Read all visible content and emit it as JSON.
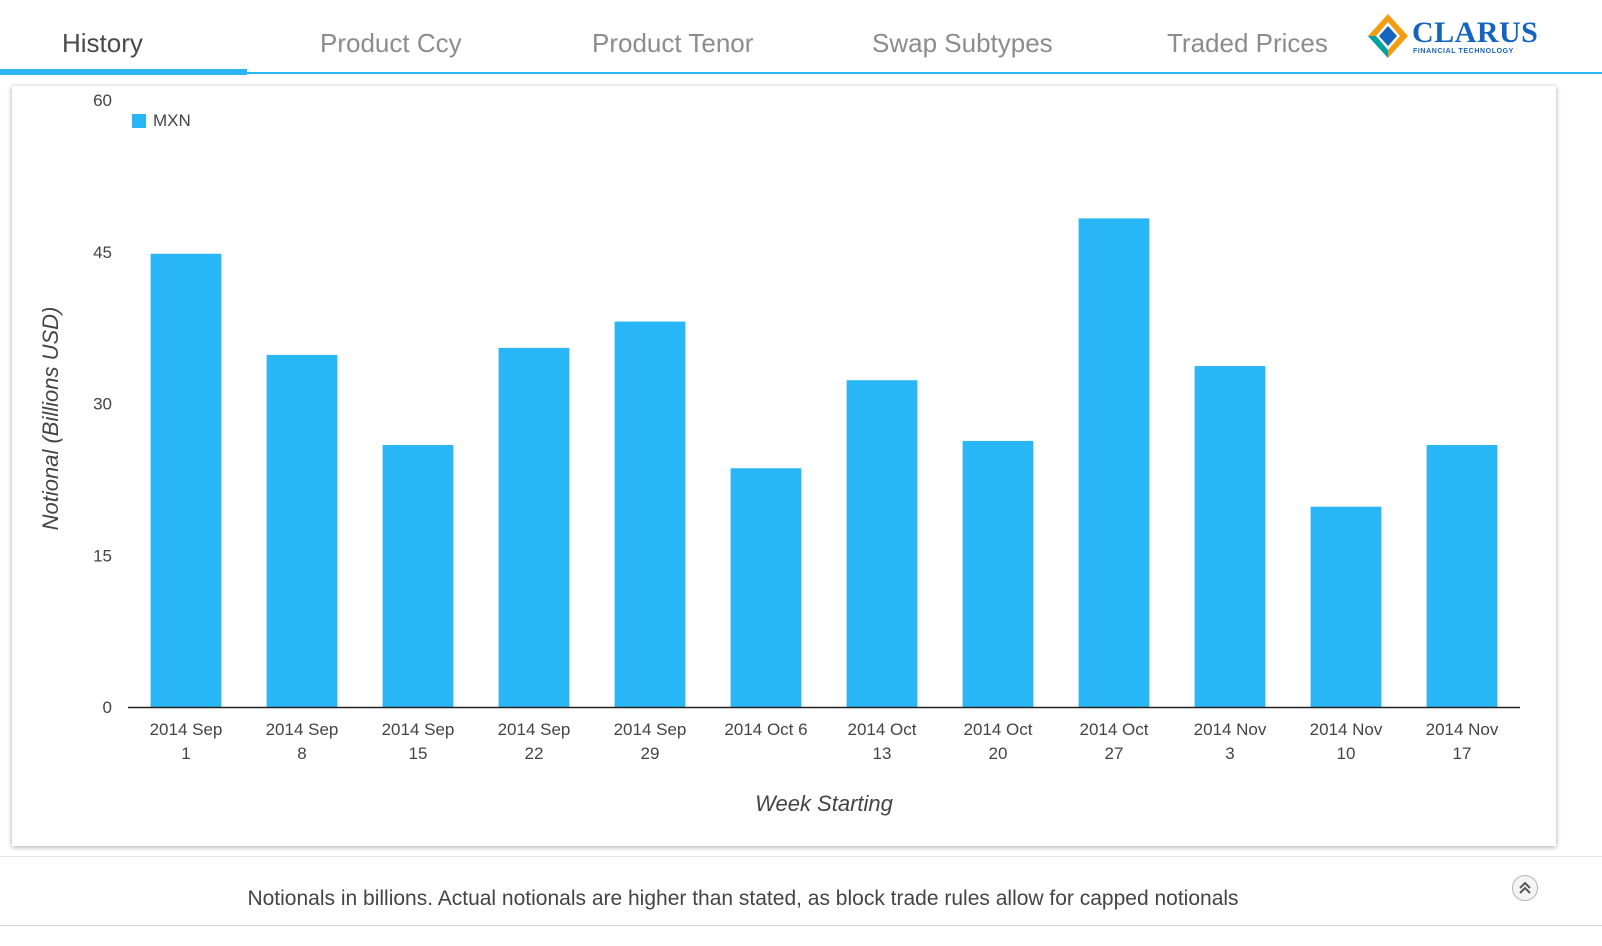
{
  "tabs": [
    {
      "label": "History",
      "active": true
    },
    {
      "label": "Product Ccy",
      "active": false
    },
    {
      "label": "Product Tenor",
      "active": false
    },
    {
      "label": "Swap Subtypes",
      "active": false
    },
    {
      "label": "Traded Prices",
      "active": false
    }
  ],
  "brand": {
    "name": "CLARUS",
    "tagline": "FINANCIAL TECHNOLOGY",
    "primary_color": "#1565c0",
    "accent_colors": [
      "#f39c12",
      "#1565c0",
      "#00a3a3"
    ],
    "icon": "clarus-diamond-logo"
  },
  "colors": {
    "accent": "#29b6f6",
    "bar": "#29b6f6"
  },
  "chart_data": {
    "type": "bar",
    "title": "",
    "xlabel": "Week Starting",
    "ylabel": "Notional (Billions USD)",
    "ylim": [
      0,
      60
    ],
    "yticks": [
      0,
      15,
      30,
      45,
      60
    ],
    "grid": false,
    "legend_position": "top-left",
    "categories": [
      [
        "2014 Sep",
        "1"
      ],
      [
        "2014 Sep",
        "8"
      ],
      [
        "2014 Sep",
        "15"
      ],
      [
        "2014 Sep",
        "22"
      ],
      [
        "2014 Sep",
        "29"
      ],
      [
        "2014 Oct 6",
        ""
      ],
      [
        "2014 Oct",
        "13"
      ],
      [
        "2014 Oct",
        "20"
      ],
      [
        "2014 Oct",
        "27"
      ],
      [
        "2014 Nov",
        "3"
      ],
      [
        "2014 Nov",
        "10"
      ],
      [
        "2014 Nov",
        "17"
      ]
    ],
    "series": [
      {
        "name": "MXN",
        "color": "#29b6f6",
        "values": [
          44.8,
          34.8,
          25.9,
          35.5,
          38.1,
          23.6,
          32.3,
          26.3,
          48.3,
          33.7,
          19.8,
          25.9
        ]
      }
    ]
  },
  "footer": {
    "note": "Notionals in billions. Actual notionals are higher than stated, as block trade rules allow for capped notionals",
    "collapse_icon": "double-chevron-up-icon"
  }
}
